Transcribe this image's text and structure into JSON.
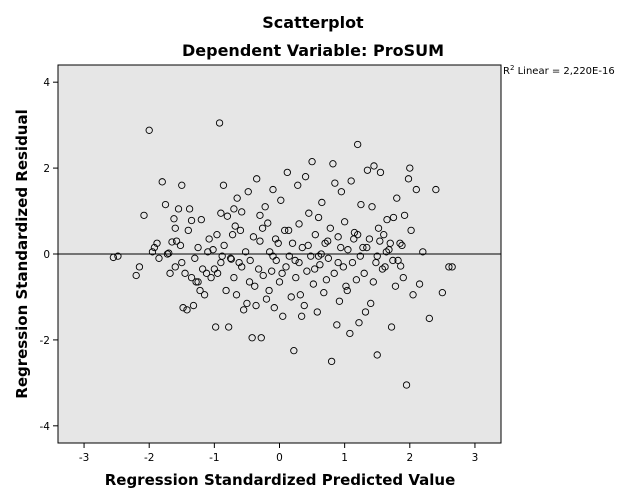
{
  "chart_data": {
    "type": "scatter",
    "title": "Scatterplot",
    "subtitle": "Dependent Variable: ProSUM",
    "xlabel": "Regression Standardized Predicted Value",
    "ylabel": "Regression Standardized Residual",
    "xlim": [
      -3.4,
      3.4
    ],
    "ylim": [
      -4.4,
      4.4
    ],
    "xticks": [
      -3,
      -2,
      -1,
      0,
      1,
      2,
      3
    ],
    "yticks": [
      -4,
      -2,
      0,
      2,
      4
    ],
    "xtick_labels": [
      "-3",
      "-2",
      "-1",
      "0",
      "1",
      "2",
      "3"
    ],
    "ytick_labels": [
      "-4",
      "-2",
      "0",
      "2",
      "4"
    ],
    "reference_line_y": 0,
    "fit_label_sup": "2",
    "fit_label_text": " Linear = 2,220E-16",
    "background_color": "#e6e6e6",
    "marker_color": "#000000",
    "points": [
      [
        -2.55,
        -0.08
      ],
      [
        -2.48,
        -0.05
      ],
      [
        -2.2,
        -0.5
      ],
      [
        -2.15,
        -0.3
      ],
      [
        -2.08,
        0.9
      ],
      [
        -2.0,
        2.88
      ],
      [
        -1.95,
        0.05
      ],
      [
        -1.92,
        0.15
      ],
      [
        -1.85,
        -0.1
      ],
      [
        -1.8,
        1.68
      ],
      [
        -1.75,
        1.15
      ],
      [
        -1.7,
        0.02
      ],
      [
        -1.65,
        0.28
      ],
      [
        -1.62,
        0.82
      ],
      [
        -1.6,
        -0.3
      ],
      [
        -1.58,
        0.3
      ],
      [
        -1.55,
        1.05
      ],
      [
        -1.52,
        0.2
      ],
      [
        -1.5,
        1.6
      ],
      [
        -1.48,
        -1.25
      ],
      [
        -1.45,
        -0.45
      ],
      [
        -1.42,
        -1.3
      ],
      [
        -1.4,
        0.55
      ],
      [
        -1.38,
        1.05
      ],
      [
        -1.35,
        -0.55
      ],
      [
        -1.32,
        -1.2
      ],
      [
        -1.3,
        -0.1
      ],
      [
        -1.28,
        -0.65
      ],
      [
        -1.25,
        0.15
      ],
      [
        -1.22,
        -0.85
      ],
      [
        -1.2,
        0.8
      ],
      [
        -1.15,
        -0.95
      ],
      [
        -1.12,
        -0.45
      ],
      [
        -1.1,
        0.05
      ],
      [
        -1.05,
        -0.55
      ],
      [
        -1.02,
        0.1
      ],
      [
        -1.0,
        -0.35
      ],
      [
        -0.98,
        -1.7
      ],
      [
        -0.95,
        -0.45
      ],
      [
        -0.92,
        3.05
      ],
      [
        -0.9,
        0.95
      ],
      [
        -0.88,
        -0.05
      ],
      [
        -0.85,
        0.2
      ],
      [
        -0.82,
        -0.85
      ],
      [
        -0.8,
        0.88
      ],
      [
        -0.78,
        -1.7
      ],
      [
        -0.75,
        -0.1
      ],
      [
        -0.72,
        0.45
      ],
      [
        -0.7,
        -0.55
      ],
      [
        -0.68,
        0.65
      ],
      [
        -0.65,
        1.3
      ],
      [
        -0.62,
        -0.2
      ],
      [
        -0.6,
        0.55
      ],
      [
        -0.58,
        -0.3
      ],
      [
        -0.55,
        -1.3
      ],
      [
        -0.52,
        0.05
      ],
      [
        -0.5,
        -1.15
      ],
      [
        -0.48,
        1.45
      ],
      [
        -0.45,
        -0.15
      ],
      [
        -0.42,
        -1.95
      ],
      [
        -0.4,
        0.4
      ],
      [
        -0.38,
        -0.75
      ],
      [
        -0.35,
        1.75
      ],
      [
        -0.32,
        -0.35
      ],
      [
        -0.3,
        0.3
      ],
      [
        -0.28,
        -1.95
      ],
      [
        -0.25,
        -0.5
      ],
      [
        -0.22,
        1.1
      ],
      [
        -0.2,
        -1.05
      ],
      [
        -0.18,
        0.72
      ],
      [
        -0.15,
        0.05
      ],
      [
        -0.12,
        -0.4
      ],
      [
        -0.1,
        1.5
      ],
      [
        -0.08,
        -1.25
      ],
      [
        -0.05,
        -0.15
      ],
      [
        -0.02,
        0.25
      ],
      [
        0.0,
        -0.65
      ],
      [
        0.02,
        1.25
      ],
      [
        0.05,
        -1.45
      ],
      [
        0.08,
        0.55
      ],
      [
        0.1,
        -0.3
      ],
      [
        0.12,
        1.9
      ],
      [
        0.15,
        -0.05
      ],
      [
        0.18,
        -1.0
      ],
      [
        0.2,
        0.25
      ],
      [
        0.22,
        -2.25
      ],
      [
        0.25,
        -0.55
      ],
      [
        0.28,
        1.6
      ],
      [
        0.3,
        0.7
      ],
      [
        0.32,
        -0.95
      ],
      [
        0.35,
        0.15
      ],
      [
        0.38,
        -1.2
      ],
      [
        0.4,
        1.8
      ],
      [
        0.42,
        -0.4
      ],
      [
        0.45,
        0.95
      ],
      [
        0.48,
        -0.05
      ],
      [
        0.5,
        2.15
      ],
      [
        0.52,
        -0.7
      ],
      [
        0.55,
        0.45
      ],
      [
        0.58,
        -1.35
      ],
      [
        0.6,
        0.85
      ],
      [
        0.62,
        -0.25
      ],
      [
        0.65,
        1.2
      ],
      [
        0.68,
        -0.9
      ],
      [
        0.7,
        0.25
      ],
      [
        0.72,
        -0.6
      ],
      [
        0.75,
        -0.1
      ],
      [
        0.78,
        0.6
      ],
      [
        0.8,
        -2.5
      ],
      [
        0.82,
        2.1
      ],
      [
        0.85,
        1.65
      ],
      [
        0.88,
        -1.65
      ],
      [
        0.9,
        0.4
      ],
      [
        0.92,
        -1.1
      ],
      [
        0.95,
        1.45
      ],
      [
        0.98,
        -0.3
      ],
      [
        1.0,
        0.75
      ],
      [
        1.02,
        -0.75
      ],
      [
        1.05,
        0.1
      ],
      [
        1.08,
        -1.85
      ],
      [
        1.1,
        1.7
      ],
      [
        1.12,
        -0.2
      ],
      [
        1.15,
        0.5
      ],
      [
        1.18,
        -0.6
      ],
      [
        1.2,
        2.55
      ],
      [
        1.22,
        -1.6
      ],
      [
        1.25,
        1.15
      ],
      [
        1.28,
        0.15
      ],
      [
        1.3,
        -0.45
      ],
      [
        1.32,
        -1.35
      ],
      [
        1.35,
        1.95
      ],
      [
        1.38,
        0.35
      ],
      [
        1.4,
        -1.15
      ],
      [
        1.42,
        1.1
      ],
      [
        1.45,
        2.05
      ],
      [
        1.48,
        -0.2
      ],
      [
        1.5,
        -2.35
      ],
      [
        1.52,
        0.6
      ],
      [
        1.55,
        1.9
      ],
      [
        1.58,
        -0.35
      ],
      [
        1.6,
        0.45
      ],
      [
        1.62,
        -0.3
      ],
      [
        1.65,
        0.8
      ],
      [
        1.68,
        0.1
      ],
      [
        1.7,
        0.25
      ],
      [
        1.72,
        -1.7
      ],
      [
        1.75,
        0.85
      ],
      [
        1.78,
        -0.75
      ],
      [
        1.8,
        1.3
      ],
      [
        1.82,
        -0.15
      ],
      [
        1.85,
        0.25
      ],
      [
        1.88,
        0.2
      ],
      [
        1.9,
        -0.55
      ],
      [
        1.92,
        0.9
      ],
      [
        1.95,
        -3.05
      ],
      [
        1.98,
        1.75
      ],
      [
        2.0,
        2.0
      ],
      [
        2.02,
        0.55
      ],
      [
        2.05,
        -0.95
      ],
      [
        2.1,
        1.5
      ],
      [
        2.15,
        -0.7
      ],
      [
        2.2,
        0.05
      ],
      [
        2.3,
        -1.5
      ],
      [
        2.4,
        1.5
      ],
      [
        2.5,
        -0.9
      ],
      [
        2.6,
        -0.3
      ],
      [
        2.65,
        -0.3
      ],
      [
        -1.72,
        0.0
      ],
      [
        -1.88,
        0.25
      ],
      [
        -1.68,
        -0.45
      ],
      [
        -1.35,
        0.78
      ],
      [
        -1.18,
        -0.35
      ],
      [
        -1.08,
        0.35
      ],
      [
        -0.96,
        0.45
      ],
      [
        -0.86,
        1.6
      ],
      [
        -0.74,
        -0.12
      ],
      [
        -0.66,
        -0.95
      ],
      [
        -0.58,
        0.98
      ],
      [
        -0.46,
        -0.65
      ],
      [
        -0.36,
        -1.2
      ],
      [
        -0.26,
        0.6
      ],
      [
        -0.16,
        -0.85
      ],
      [
        -0.06,
        0.35
      ],
      [
        0.04,
        -0.45
      ],
      [
        0.14,
        0.55
      ],
      [
        0.24,
        -0.15
      ],
      [
        0.34,
        -1.45
      ],
      [
        0.44,
        0.2
      ],
      [
        0.54,
        -0.35
      ],
      [
        0.64,
        0.0
      ],
      [
        0.74,
        0.3
      ],
      [
        0.84,
        -0.45
      ],
      [
        0.94,
        0.15
      ],
      [
        1.04,
        -0.85
      ],
      [
        1.14,
        0.35
      ],
      [
        1.24,
        -0.05
      ],
      [
        1.34,
        0.15
      ],
      [
        1.44,
        -0.65
      ],
      [
        1.54,
        0.3
      ],
      [
        1.64,
        0.05
      ],
      [
        1.74,
        -0.15
      ],
      [
        -1.5,
        -0.2
      ],
      [
        -0.9,
        -0.2
      ],
      [
        -0.3,
        0.9
      ],
      [
        0.3,
        -0.2
      ],
      [
        0.9,
        -0.2
      ],
      [
        1.5,
        -0.05
      ],
      [
        -0.7,
        1.05
      ],
      [
        -0.1,
        -0.05
      ],
      [
        0.6,
        -0.05
      ],
      [
        1.2,
        0.45
      ],
      [
        1.86,
        -0.28
      ],
      [
        -1.6,
        0.6
      ],
      [
        -1.25,
        -0.65
      ]
    ]
  }
}
